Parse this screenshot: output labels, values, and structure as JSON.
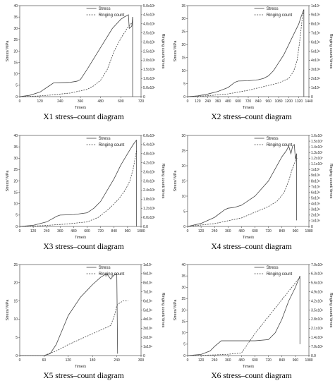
{
  "chart_data": [
    {
      "type": "line",
      "caption": "X1 stress–count diagram",
      "xlabel": "Time/s",
      "ylabel_left": "Stress/ MPa",
      "ylabel_right": "Ringing count/ times",
      "xlim": [
        0,
        720
      ],
      "xticks": [
        0,
        120,
        240,
        360,
        480,
        600,
        720
      ],
      "ylim_left": [
        0,
        40
      ],
      "yticks_left": [
        0,
        5,
        10,
        15,
        20,
        25,
        30,
        35,
        40
      ],
      "ylim_right": [
        0,
        5000000
      ],
      "yticks_right": [
        "0",
        "5.0x10⁵",
        "1.0x10⁶",
        "1.5x10⁶",
        "2.0x10⁶",
        "2.5x10⁶",
        "3.0x10⁶",
        "3.5x10⁶",
        "4.0x10⁶",
        "4.5x10⁶",
        "5.0x10⁶"
      ],
      "legend": [
        "Stress",
        "Ringing count"
      ],
      "series": [
        {
          "name": "Stress",
          "axis": "left",
          "style": "solid",
          "x": [
            0,
            60,
            120,
            180,
            200,
            240,
            300,
            340,
            360,
            400,
            450,
            500,
            550,
            600,
            620,
            645,
            650,
            665,
            670
          ],
          "y": [
            0,
            0.6,
            2,
            5,
            6,
            6.1,
            6.3,
            6.8,
            7.5,
            12,
            18,
            24,
            30,
            34,
            35,
            36,
            30,
            31,
            35
          ]
        },
        {
          "name": "Ringing count",
          "axis": "right",
          "style": "dashed",
          "x": [
            0,
            100,
            200,
            300,
            400,
            440,
            480,
            520,
            560,
            600,
            640,
            670
          ],
          "y": [
            0,
            30000,
            100000,
            200000,
            400000,
            600000,
            900000,
            1500000,
            2500000,
            3200000,
            3800000,
            4100000
          ]
        }
      ],
      "drops": [
        {
          "x": 670,
          "y_left": 35,
          "to": 0
        }
      ]
    },
    {
      "type": "line",
      "caption": "X2 stress–count diagram",
      "xlabel": "Time/s",
      "ylabel_left": "Stress/ MPa",
      "ylabel_right": "Ringing count/ times",
      "xlim": [
        0,
        1440
      ],
      "xticks": [
        0,
        120,
        240,
        360,
        480,
        600,
        720,
        840,
        960,
        1080,
        1200,
        1320,
        1440
      ],
      "ylim_left": [
        0,
        35
      ],
      "yticks_left": [
        0,
        5,
        10,
        15,
        20,
        25,
        30,
        35
      ],
      "ylim_right": [
        0,
        10000000
      ],
      "yticks_right": [
        "0",
        "1x10⁶",
        "2x10⁶",
        "3x10⁶",
        "4x10⁶",
        "5x10⁶",
        "6x10⁶",
        "7x10⁶",
        "8x10⁶",
        "9x10⁶",
        "1x10⁷"
      ],
      "legend": [
        "Stress",
        "Ringing count"
      ],
      "series": [
        {
          "name": "Stress",
          "axis": "left",
          "style": "solid",
          "x": [
            0,
            120,
            240,
            360,
            480,
            560,
            600,
            720,
            840,
            900,
            960,
            1020,
            1080,
            1140,
            1200,
            1260,
            1320,
            1350,
            1380
          ],
          "y": [
            0,
            0.3,
            1,
            2,
            3.5,
            5.5,
            6,
            6.1,
            6.5,
            7,
            8,
            10,
            13,
            16,
            20,
            24,
            28,
            31,
            33.5
          ]
        },
        {
          "name": "Ringing count",
          "axis": "right",
          "style": "dashed",
          "x": [
            0,
            240,
            480,
            720,
            900,
            1080,
            1200,
            1260,
            1300,
            1330,
            1360,
            1380
          ],
          "y": [
            0,
            100000,
            300000,
            700000,
            1100000,
            1500000,
            2000000,
            2800000,
            4000000,
            6000000,
            8500000,
            9500000
          ]
        }
      ],
      "drops": [
        {
          "x": 1380,
          "y_left": 33.5,
          "to": 0
        }
      ]
    },
    {
      "type": "line",
      "caption": "X3 stress–count diagram",
      "xlabel": "Time/s",
      "ylabel_left": "Stress/ MPa",
      "ylabel_right": "Ringing count/ times",
      "xlim": [
        0,
        1080
      ],
      "xticks": [
        0,
        120,
        240,
        360,
        480,
        600,
        720,
        840,
        960,
        1080
      ],
      "ylim_left": [
        0,
        40
      ],
      "yticks_left": [
        0,
        5,
        10,
        15,
        20,
        25,
        30,
        35,
        40
      ],
      "ylim_right": [
        0,
        6000000
      ],
      "yticks_right": [
        "0.0",
        "6.0x10⁵",
        "1.2x10⁶",
        "1.8x10⁶",
        "2.4x10⁶",
        "3.0x10⁶",
        "3.6x10⁶",
        "4.2x10⁶",
        "4.8x10⁶",
        "5.4x10⁶",
        "6.0x10⁶"
      ],
      "legend": [
        "Stress",
        "Ringing count"
      ],
      "series": [
        {
          "name": "Stress",
          "axis": "left",
          "style": "solid",
          "x": [
            0,
            120,
            240,
            330,
            360,
            480,
            600,
            660,
            720,
            780,
            840,
            900,
            960,
            1010,
            1040
          ],
          "y": [
            0,
            0.5,
            2,
            4.5,
            5,
            5.2,
            6,
            8,
            11,
            16,
            21,
            27,
            32,
            36,
            38
          ]
        },
        {
          "name": "Ringing count",
          "axis": "right",
          "style": "dashed",
          "x": [
            0,
            200,
            400,
            600,
            700,
            800,
            880,
            940,
            980,
            1010,
            1040
          ],
          "y": [
            0,
            50000,
            150000,
            300000,
            600000,
            1200000,
            1800000,
            2400000,
            3000000,
            3800000,
            5000000
          ]
        }
      ],
      "drops": [
        {
          "x": 1040,
          "y_left": 38,
          "to": 0
        }
      ]
    },
    {
      "type": "line",
      "caption": "X4 stress–count diagram",
      "xlabel": "Time/s",
      "ylabel_left": "Stress/ MPa",
      "ylabel_right": "Ringing count/ times",
      "xlim": [
        0,
        1080
      ],
      "xticks": [
        0,
        120,
        240,
        360,
        480,
        600,
        720,
        840,
        960,
        1080
      ],
      "ylim_left": [
        0,
        30
      ],
      "yticks_left": [
        0,
        5,
        10,
        15,
        20,
        25,
        30
      ],
      "ylim_right": [
        0,
        16000000
      ],
      "yticks_right": [
        "0",
        "1x10⁶",
        "2x10⁶",
        "3x10⁶",
        "4x10⁶",
        "5x10⁶",
        "6x10⁶",
        "7x10⁶",
        "8x10⁶",
        "9x10⁶",
        "1x10⁷",
        "1.1x10⁷",
        "1.2x10⁷",
        "1.3x10⁷",
        "1.4x10⁷",
        "1.5x10⁷",
        "1.6x10⁷"
      ],
      "legend": [
        "Stress",
        "Ringing count"
      ],
      "series": [
        {
          "name": "Stress",
          "axis": "left",
          "style": "solid",
          "x": [
            0,
            120,
            240,
            330,
            360,
            420,
            480,
            600,
            720,
            780,
            840,
            880,
            900,
            920,
            935,
            950,
            960,
            970
          ],
          "y": [
            0,
            1,
            3,
            5.5,
            6,
            6.3,
            7,
            10,
            15,
            19,
            23,
            25,
            26.5,
            24,
            26.5,
            27,
            22,
            24
          ]
        },
        {
          "name": "Ringing count",
          "axis": "right",
          "style": "dashed",
          "x": [
            0,
            240,
            480,
            600,
            720,
            800,
            860,
            900,
            930,
            960,
            975
          ],
          "y": [
            0,
            500000,
            1500000,
            2500000,
            3500000,
            4500000,
            6000000,
            8000000,
            10000000,
            11500000,
            12000000
          ]
        }
      ],
      "drops": [
        {
          "x": 970,
          "y_left": 24,
          "to": 2
        }
      ]
    },
    {
      "type": "line",
      "caption": "X5 stress–count diagram",
      "xlabel": "Time/s",
      "ylabel_left": "Stress/ MPa",
      "ylabel_right": "Ringing count/ times",
      "xlim": [
        0,
        300
      ],
      "xticks": [
        0,
        60,
        120,
        180,
        240,
        300
      ],
      "ylim_left": [
        0,
        25
      ],
      "yticks_left": [
        0,
        5,
        10,
        15,
        20,
        25
      ],
      "ylim_right": [
        0,
        10000000
      ],
      "yticks_right": [
        "0",
        "1x10⁶",
        "2x10⁶",
        "3x10⁶",
        "4x10⁶",
        "5x10⁶",
        "6x10⁶",
        "7x10⁶",
        "8x10⁶",
        "9x10⁶",
        "1x10⁷"
      ],
      "legend": [
        "Stress",
        "Ringing count"
      ],
      "series": [
        {
          "name": "Stress",
          "axis": "left",
          "style": "solid",
          "x": [
            0,
            60,
            75,
            90,
            105,
            120,
            150,
            180,
            200,
            215,
            225,
            232,
            240,
            242
          ],
          "y": [
            0,
            0,
            0.5,
            3,
            7,
            11,
            16,
            19.5,
            21.5,
            22.5,
            21,
            22,
            22.5,
            0.5
          ]
        },
        {
          "name": "Ringing count",
          "axis": "right",
          "style": "dashed",
          "x": [
            0,
            60,
            90,
            120,
            160,
            200,
            225,
            235,
            240,
            245,
            255,
            268
          ],
          "y": [
            0,
            0,
            500000,
            1200000,
            2000000,
            2800000,
            3300000,
            4500000,
            5500000,
            5700000,
            6000000,
            6000000
          ]
        }
      ],
      "drops": []
    },
    {
      "type": "line",
      "caption": "X6 stress–count diagram",
      "xlabel": "Time/s",
      "ylabel_left": "Stress/ MPa",
      "ylabel_right": "Ringing count/ times",
      "xlim": [
        0,
        1080
      ],
      "xticks": [
        0,
        120,
        240,
        360,
        480,
        600,
        720,
        840,
        960,
        1080
      ],
      "ylim_left": [
        0,
        40
      ],
      "yticks_left": [
        0,
        5,
        10,
        15,
        20,
        25,
        30,
        35,
        40
      ],
      "ylim_right": [
        0,
        7000000
      ],
      "yticks_right": [
        "0.0",
        "7.0x10⁵",
        "1.4x10⁶",
        "2.1x10⁶",
        "2.8x10⁶",
        "3.5x10⁶",
        "4.2x10⁶",
        "4.9x10⁶",
        "5.6x10⁶",
        "6.3x10⁶",
        "7.0x10⁶"
      ],
      "legend": [
        "Stress",
        "Ringing count"
      ],
      "series": [
        {
          "name": "Stress",
          "axis": "left",
          "style": "solid",
          "x": [
            0,
            120,
            200,
            240,
            300,
            360,
            480,
            600,
            720,
            780,
            840,
            900,
            960,
            1000
          ],
          "y": [
            0,
            0.5,
            2,
            4,
            6.5,
            6.5,
            6.5,
            6.5,
            7,
            10,
            16,
            24,
            30,
            35
          ]
        },
        {
          "name": "Ringing count",
          "axis": "right",
          "style": "dashed",
          "x": [
            0,
            120,
            240,
            360,
            480,
            520,
            600,
            720,
            840,
            960,
            1000
          ],
          "y": [
            0,
            20000,
            50000,
            100000,
            200000,
            700000,
            1700000,
            3000000,
            4300000,
            5600000,
            6000000
          ]
        }
      ],
      "drops": [
        {
          "x": 1000,
          "y_left": 35,
          "to": 5
        }
      ]
    }
  ]
}
